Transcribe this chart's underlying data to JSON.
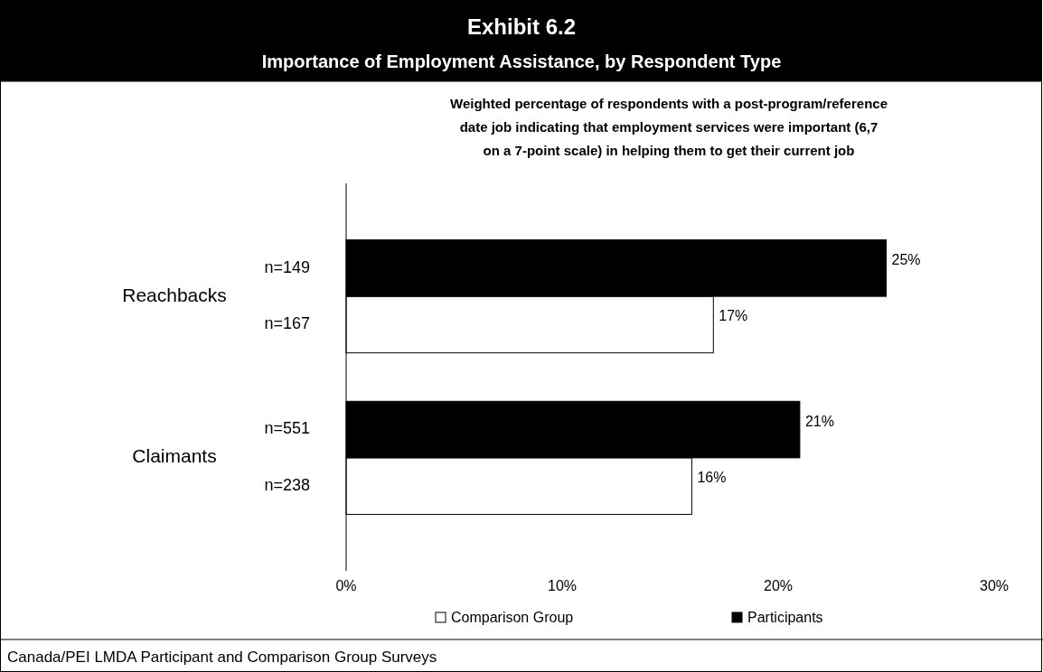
{
  "chart_data": {
    "type": "bar",
    "orientation": "horizontal",
    "title": "Exhibit 6.2",
    "subtitle": "Importance of Employment Assistance, by Respondent Type",
    "categories": [
      "Reachbacks",
      "Claimants"
    ],
    "series": [
      {
        "name": "Comparison Group",
        "color": "#ffffff",
        "values": [
          17,
          16
        ],
        "value_labels": [
          "17%",
          "16%"
        ]
      },
      {
        "name": "Participants",
        "color": "#000000",
        "values": [
          25,
          21
        ],
        "value_labels": [
          "25%",
          "21%"
        ]
      }
    ],
    "xlim": [
      0,
      30
    ],
    "xticks": [
      {
        "value": 0,
        "label": "0%"
      },
      {
        "value": 10,
        "label": "10%"
      },
      {
        "value": 20,
        "label": "20%"
      },
      {
        "value": 30,
        "label": "30%"
      }
    ],
    "grid": false,
    "legend": "bottom",
    "annotations": [
      "Weighted percentage of respondents with a post-program/reference date job indicating that employment services were important (6,7 on a 7-point scale) in helping them  to get their current job",
      "n=149",
      "n=167",
      "n=551",
      "n=238",
      "Canada/PEI LMDA Participant and Comparison Group Surveys"
    ]
  }
}
